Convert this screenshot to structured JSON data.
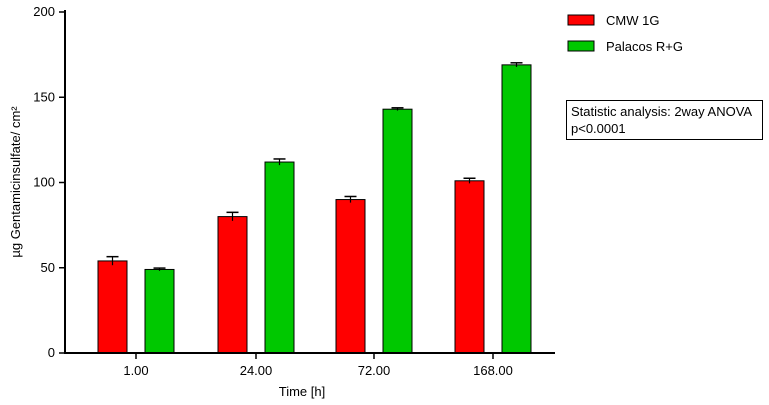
{
  "chart_data": {
    "type": "bar",
    "categories": [
      "1.00",
      "24.00",
      "72.00",
      "168.00"
    ],
    "series": [
      {
        "name": "CMW 1G",
        "color": "#ff0000",
        "values": [
          54,
          80,
          90,
          101
        ],
        "errors": [
          2.5,
          2.5,
          1.8,
          1.5
        ]
      },
      {
        "name": "Palacos R+G",
        "color": "#00c800",
        "values": [
          49,
          112,
          143,
          169
        ],
        "errors": [
          0.8,
          1.8,
          0.8,
          1.2
        ]
      }
    ],
    "xlabel": "Time [h]",
    "ylabel": "µg Gentamicinsulfate/ cm²",
    "ylim": [
      0,
      200
    ],
    "yticks": [
      "0",
      "50",
      "100",
      "150",
      "200"
    ],
    "grid": false,
    "legend_position": "top-right",
    "annotation": {
      "line1": "Statistic analysis: 2way ANOVA",
      "line2": "p<0.0001"
    }
  }
}
